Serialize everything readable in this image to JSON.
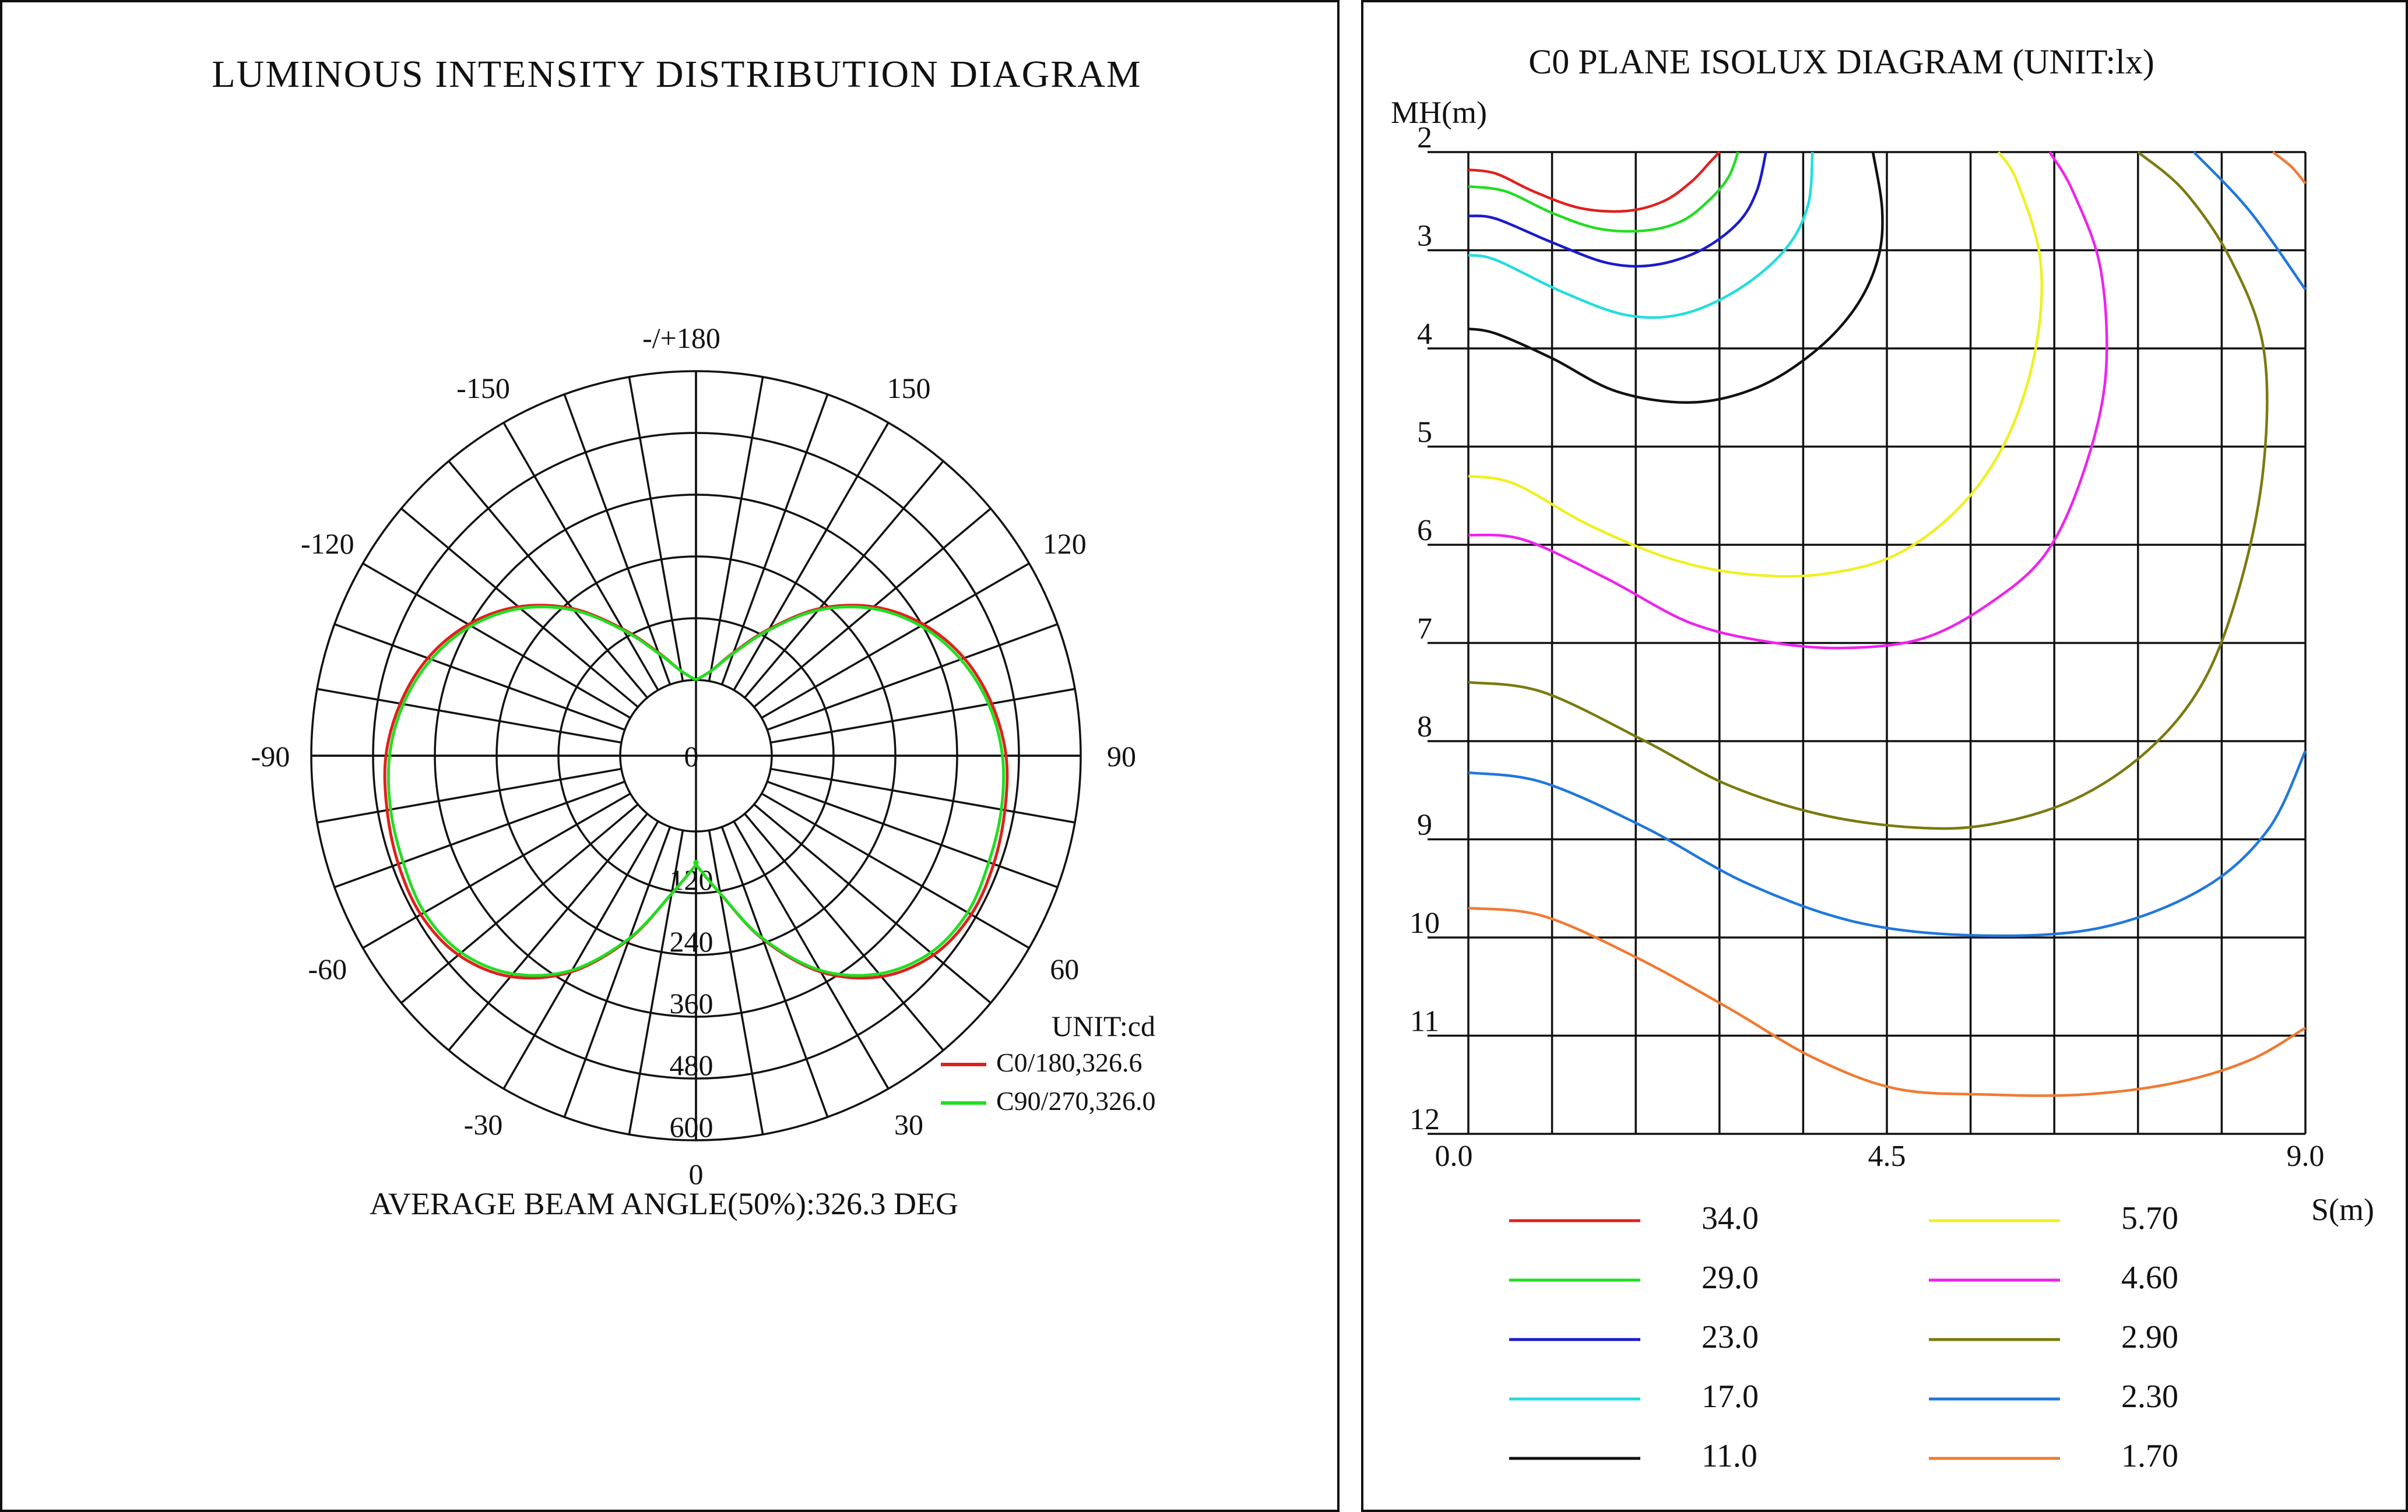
{
  "chart_data": [
    {
      "type": "polar-line",
      "title": "LUMINOUS INTENSITY DISTRIBUTION DIAGRAM",
      "unit_label": "UNIT:cd",
      "footer": "AVERAGE BEAM ANGLE(50%):326.3 DEG",
      "angle_labels": [
        {
          "angle": 180,
          "text": "-/+180"
        },
        {
          "angle": 150,
          "text": "150"
        },
        {
          "angle": -150,
          "text": "-150"
        },
        {
          "angle": 120,
          "text": "120"
        },
        {
          "angle": -120,
          "text": "-120"
        },
        {
          "angle": 90,
          "text": "90"
        },
        {
          "angle": -90,
          "text": "-90"
        },
        {
          "angle": 60,
          "text": "60"
        },
        {
          "angle": -60,
          "text": "-60"
        },
        {
          "angle": 30,
          "text": "30"
        },
        {
          "angle": -30,
          "text": "-30"
        },
        {
          "angle": 0,
          "text": "0"
        }
      ],
      "radial_labels": [
        "0",
        "120",
        "240",
        "360",
        "480",
        "600"
      ],
      "radial_ticks": [
        120,
        240,
        360,
        480,
        600
      ],
      "radial_offset": 120,
      "series": [
        {
          "name": "C0/180,326.6",
          "color": "#e0201c",
          "angles": [
            0,
            10,
            20,
            30,
            40,
            50,
            60,
            70,
            80,
            90,
            100,
            110,
            120,
            130,
            140,
            150,
            160,
            170,
            180
          ],
          "values": [
            65,
            125,
            232,
            338,
            413,
            455,
            470,
            468,
            462,
            455,
            436,
            407,
            363,
            303,
            226,
            137,
            66,
            20,
            0
          ]
        },
        {
          "name": "C90/270,326.0",
          "color": "#22dd22",
          "angles": [
            0,
            10,
            20,
            30,
            40,
            50,
            60,
            70,
            80,
            90,
            100,
            110,
            120,
            130,
            140,
            150,
            160,
            170,
            180
          ],
          "values": [
            65,
            125,
            230,
            334,
            406,
            448,
            462,
            458,
            455,
            448,
            430,
            400,
            357,
            298,
            222,
            134,
            64,
            20,
            0
          ]
        }
      ]
    },
    {
      "type": "isolux-contour",
      "title": "C0 PLANE ISOLUX DIAGRAM (UNIT:lx)",
      "ylabel": "MH(m)",
      "xlabel": "S(m)",
      "x_range": [
        0,
        9
      ],
      "y_range": [
        2,
        12
      ],
      "x_ticks": [
        "0.0",
        "4.5",
        "9.0"
      ],
      "y_ticks": [
        "2",
        "3",
        "4",
        "5",
        "6",
        "7",
        "8",
        "9",
        "10",
        "11",
        "12"
      ],
      "grid_cols": 10,
      "grid_rows": 10,
      "contours": [
        {
          "label": "34.0",
          "color": "#e0201c",
          "points": [
            [
              0,
              2.18
            ],
            [
              0.3,
              2.22
            ],
            [
              0.7,
              2.4
            ],
            [
              1.2,
              2.57
            ],
            [
              1.7,
              2.6
            ],
            [
              2.1,
              2.5
            ],
            [
              2.4,
              2.3
            ],
            [
              2.6,
              2.1
            ],
            [
              2.7,
              2
            ]
          ]
        },
        {
          "label": "29.0",
          "color": "#22dd22",
          "points": [
            [
              0,
              2.35
            ],
            [
              0.4,
              2.4
            ],
            [
              0.9,
              2.62
            ],
            [
              1.4,
              2.78
            ],
            [
              1.9,
              2.8
            ],
            [
              2.3,
              2.7
            ],
            [
              2.6,
              2.48
            ],
            [
              2.8,
              2.25
            ],
            [
              2.9,
              2
            ]
          ]
        },
        {
          "label": "23.0",
          "color": "#1a1acc",
          "points": [
            [
              0,
              2.65
            ],
            [
              0.3,
              2.68
            ],
            [
              0.9,
              2.92
            ],
            [
              1.5,
              3.13
            ],
            [
              2.0,
              3.15
            ],
            [
              2.5,
              3.0
            ],
            [
              2.9,
              2.72
            ],
            [
              3.1,
              2.4
            ],
            [
              3.2,
              2
            ]
          ]
        },
        {
          "label": "17.0",
          "color": "#22dddd",
          "points": [
            [
              0,
              3.05
            ],
            [
              0.3,
              3.1
            ],
            [
              1.0,
              3.42
            ],
            [
              1.7,
              3.66
            ],
            [
              2.3,
              3.65
            ],
            [
              2.9,
              3.4
            ],
            [
              3.4,
              3.0
            ],
            [
              3.65,
              2.55
            ],
            [
              3.7,
              2
            ]
          ]
        },
        {
          "label": "11.0",
          "color": "#111111",
          "points": [
            [
              0,
              3.8
            ],
            [
              0.3,
              3.85
            ],
            [
              0.9,
              4.1
            ],
            [
              1.6,
              4.44
            ],
            [
              2.4,
              4.55
            ],
            [
              3.1,
              4.4
            ],
            [
              3.7,
              4.05
            ],
            [
              4.15,
              3.6
            ],
            [
              4.4,
              3.1
            ],
            [
              4.45,
              2.6
            ],
            [
              4.35,
              2
            ]
          ]
        },
        {
          "label": "5.70",
          "color": "#f0f020",
          "points": [
            [
              0,
              5.3
            ],
            [
              0.5,
              5.38
            ],
            [
              1.3,
              5.8
            ],
            [
              2.2,
              6.15
            ],
            [
              3.0,
              6.3
            ],
            [
              3.8,
              6.3
            ],
            [
              4.6,
              6.1
            ],
            [
              5.3,
              5.6
            ],
            [
              5.8,
              4.9
            ],
            [
              6.1,
              4.0
            ],
            [
              6.15,
              3.1
            ],
            [
              5.9,
              2.3
            ],
            [
              5.7,
              2
            ]
          ]
        },
        {
          "label": "4.60",
          "color": "#ee22ee",
          "points": [
            [
              0,
              5.9
            ],
            [
              0.6,
              5.95
            ],
            [
              1.5,
              6.35
            ],
            [
              2.4,
              6.8
            ],
            [
              3.3,
              7.0
            ],
            [
              4.1,
              7.05
            ],
            [
              4.9,
              6.95
            ],
            [
              5.6,
              6.6
            ],
            [
              6.2,
              6.1
            ],
            [
              6.6,
              5.3
            ],
            [
              6.85,
              4.3
            ],
            [
              6.8,
              3.2
            ],
            [
              6.5,
              2.4
            ],
            [
              6.25,
              2
            ]
          ]
        },
        {
          "label": "2.90",
          "color": "#7a7a10",
          "points": [
            [
              0,
              7.4
            ],
            [
              0.8,
              7.5
            ],
            [
              1.9,
              8.0
            ],
            [
              2.8,
              8.45
            ],
            [
              3.8,
              8.75
            ],
            [
              4.8,
              8.88
            ],
            [
              5.6,
              8.85
            ],
            [
              6.5,
              8.6
            ],
            [
              7.3,
              8.1
            ],
            [
              7.9,
              7.4
            ],
            [
              8.3,
              6.4
            ],
            [
              8.55,
              5.2
            ],
            [
              8.55,
              4.0
            ],
            [
              8.2,
              3.1
            ],
            [
              7.7,
              2.4
            ],
            [
              7.2,
              2
            ]
          ]
        },
        {
          "label": "2.30",
          "color": "#1f77dd",
          "points": [
            [
              0,
              8.32
            ],
            [
              0.8,
              8.42
            ],
            [
              1.9,
              8.88
            ],
            [
              3.0,
              9.45
            ],
            [
              4.2,
              9.85
            ],
            [
              5.5,
              9.98
            ],
            [
              6.8,
              9.9
            ],
            [
              7.9,
              9.5
            ],
            [
              8.6,
              8.9
            ],
            [
              9.0,
              8.1
            ]
          ]
        },
        {
          "label": "1.70",
          "color": "#f07a33",
          "points": [
            [
              0,
              9.7
            ],
            [
              0.8,
              9.78
            ],
            [
              1.8,
              10.2
            ],
            [
              2.8,
              10.72
            ],
            [
              3.7,
              11.22
            ],
            [
              4.6,
              11.54
            ],
            [
              5.6,
              11.6
            ],
            [
              6.6,
              11.6
            ],
            [
              7.6,
              11.48
            ],
            [
              8.4,
              11.25
            ],
            [
              9.0,
              10.92
            ]
          ]
        },
        {
          "label": "",
          "color": "#1f77dd",
          "points": [
            [
              7.8,
              2
            ],
            [
              8.4,
              2.6
            ],
            [
              9.0,
              3.4
            ]
          ]
        },
        {
          "label": "",
          "color": "#f07a33",
          "points": [
            [
              8.65,
              2
            ],
            [
              8.85,
              2.15
            ],
            [
              9.0,
              2.32
            ]
          ]
        }
      ]
    }
  ]
}
